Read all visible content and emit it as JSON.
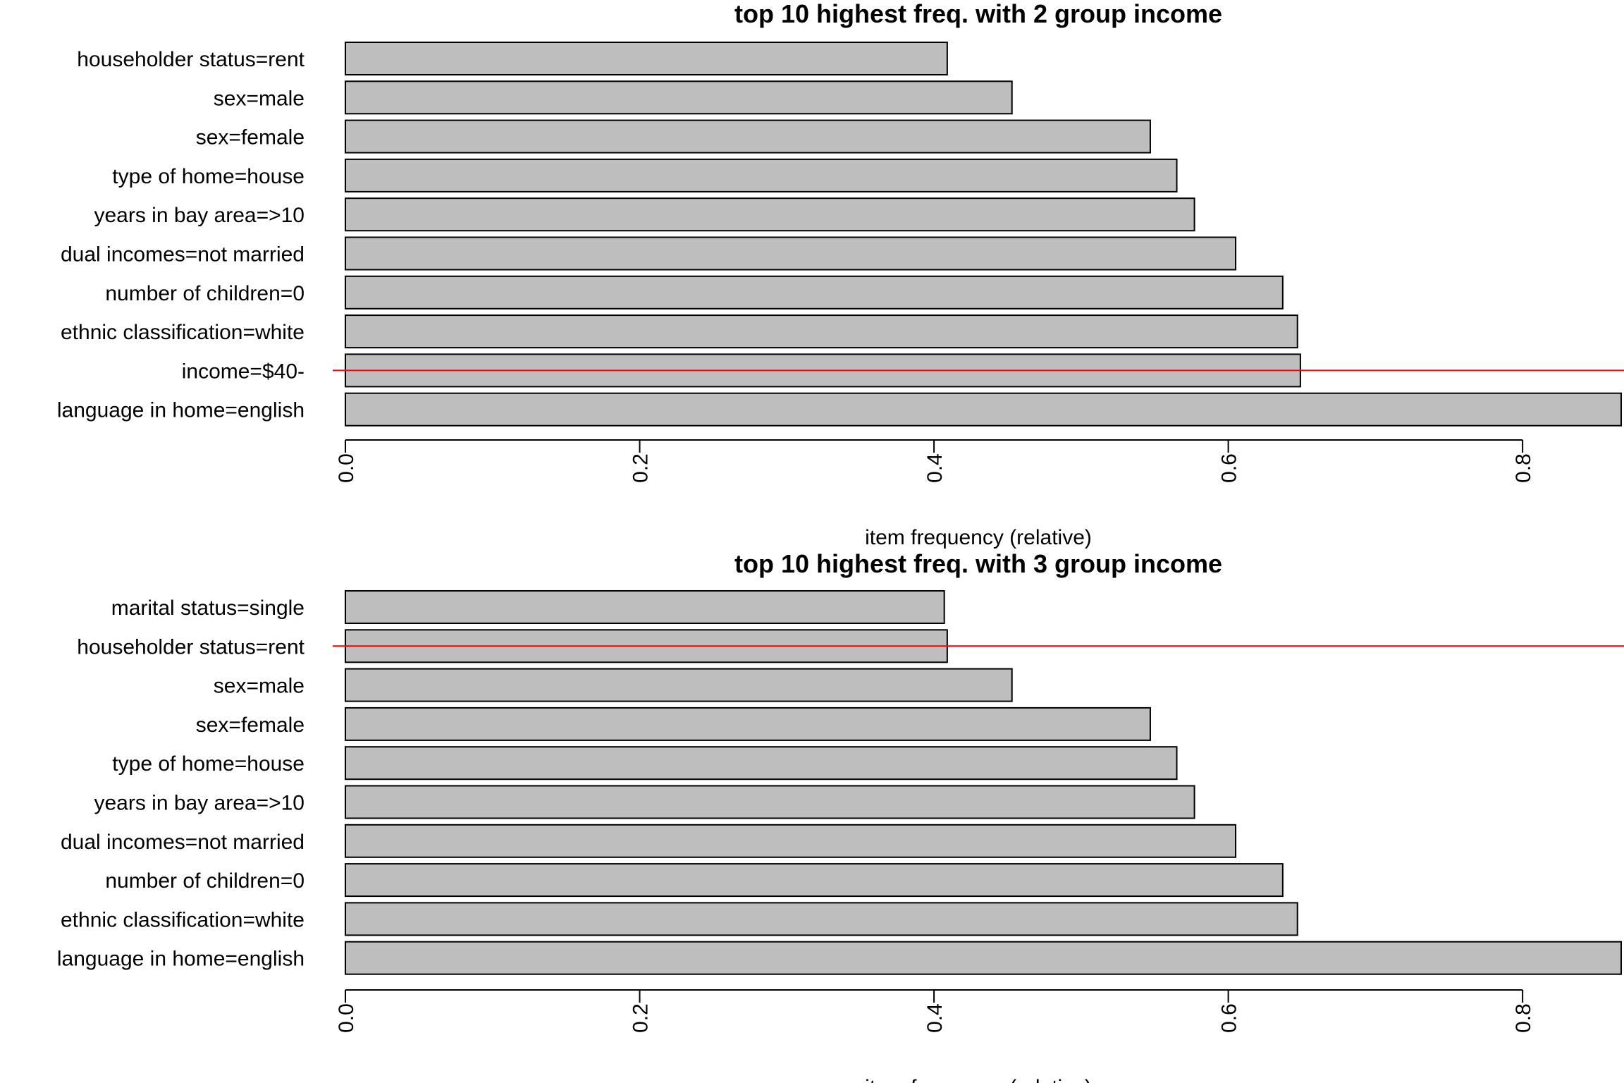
{
  "chart_data": [
    {
      "type": "bar",
      "orientation": "horizontal",
      "title": "top 10 highest freq. with 2 group income",
      "xlabel": "item frequency (relative)",
      "ylabel": "",
      "xlim": [
        0,
        0.867
      ],
      "xticks": [
        "0.0",
        "0.2",
        "0.4",
        "0.6",
        "0.8"
      ],
      "tick_values": [
        0,
        0.2,
        0.4,
        0.6,
        0.8
      ],
      "categories": [
        "householder status=rent",
        "sex=male",
        "sex=female",
        "type of home=house",
        "years in bay area=>10",
        "dual incomes=not married",
        "number of children=0",
        "ethnic classification=white",
        "income=$40-",
        "language in home=english"
      ],
      "values": [
        0.409,
        0.453,
        0.547,
        0.565,
        0.577,
        0.605,
        0.637,
        0.647,
        0.649,
        0.867
      ],
      "reference_line": {
        "category": "income=$40-",
        "color": "#ff0000"
      },
      "bar_color": "#bebebe",
      "grid": false
    },
    {
      "type": "bar",
      "orientation": "horizontal",
      "title": "top 10 highest freq. with 3 group income",
      "xlabel": "item frequency (relative)",
      "ylabel": "",
      "xlim": [
        0,
        0.867
      ],
      "xticks": [
        "0.0",
        "0.2",
        "0.4",
        "0.6",
        "0.8"
      ],
      "tick_values": [
        0,
        0.2,
        0.4,
        0.6,
        0.8
      ],
      "categories": [
        "marital status=single",
        "householder status=rent",
        "sex=male",
        "sex=female",
        "type of home=house",
        "years in bay area=>10",
        "dual incomes=not married",
        "number of children=0",
        "ethnic classification=white",
        "language in home=english"
      ],
      "values": [
        0.407,
        0.409,
        0.453,
        0.547,
        0.565,
        0.577,
        0.605,
        0.637,
        0.647,
        0.867
      ],
      "reference_line": {
        "category": "householder status=rent",
        "color": "#ff0000"
      },
      "bar_color": "#bebebe",
      "grid": false
    }
  ]
}
